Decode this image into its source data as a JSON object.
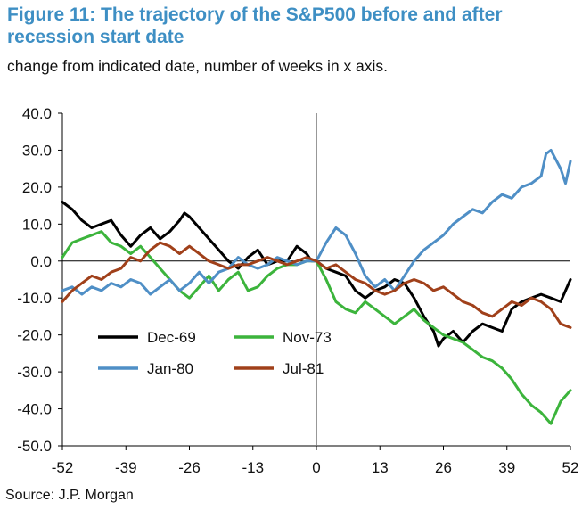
{
  "title": "Figure 11: The trajectory of the S&P500 before and after recession start date",
  "subtitle": "change from indicated date, number of weeks in x axis.",
  "source": "Source: J.P. Morgan",
  "colors": {
    "Dec-69": "#000000",
    "Nov-73": "#3cb43c",
    "Jan-80": "#4f8fc6",
    "Jul-81": "#a0401a"
  },
  "chart_data": {
    "type": "line",
    "title": "Figure 11: The trajectory of the S&P500 before and after recession start date",
    "xlabel": "",
    "ylabel": "",
    "xlim": [
      -52,
      52
    ],
    "ylim": [
      -50,
      40
    ],
    "x_ticks": [
      "-52",
      "-39",
      "-26",
      "-13",
      "0",
      "13",
      "26",
      "39",
      "52"
    ],
    "x_tick_values": [
      -52,
      -39,
      -26,
      -13,
      0,
      13,
      26,
      39,
      52
    ],
    "y_ticks": [
      "40.0",
      "30.0",
      "20.0",
      "10.0",
      "0.0",
      "-10.0",
      "-20.0",
      "-30.0",
      "-40.0",
      "-50.0"
    ],
    "y_tick_values": [
      40,
      30,
      20,
      10,
      0,
      -10,
      -20,
      -30,
      -40,
      -50
    ],
    "grid": false,
    "legend_position": "lower-left",
    "series": [
      {
        "name": "Dec-69",
        "points": [
          [
            -52,
            16
          ],
          [
            -50,
            14
          ],
          [
            -48,
            11
          ],
          [
            -46,
            9
          ],
          [
            -44,
            10
          ],
          [
            -42,
            11
          ],
          [
            -40,
            7
          ],
          [
            -38,
            4
          ],
          [
            -36,
            7
          ],
          [
            -34,
            9
          ],
          [
            -32,
            6
          ],
          [
            -30,
            8
          ],
          [
            -28,
            11
          ],
          [
            -27,
            13
          ],
          [
            -26,
            12
          ],
          [
            -24,
            9
          ],
          [
            -22,
            6
          ],
          [
            -20,
            3
          ],
          [
            -18,
            0
          ],
          [
            -16,
            -2
          ],
          [
            -14,
            1
          ],
          [
            -12,
            3
          ],
          [
            -10,
            -1
          ],
          [
            -8,
            0
          ],
          [
            -6,
            0
          ],
          [
            -4,
            4
          ],
          [
            -2,
            2
          ],
          [
            -1,
            0
          ],
          [
            0,
            0
          ],
          [
            2,
            -2
          ],
          [
            4,
            -3
          ],
          [
            6,
            -4
          ],
          [
            8,
            -8
          ],
          [
            10,
            -10
          ],
          [
            12,
            -8
          ],
          [
            14,
            -7
          ],
          [
            16,
            -5
          ],
          [
            18,
            -6
          ],
          [
            20,
            -10
          ],
          [
            22,
            -15
          ],
          [
            24,
            -19
          ],
          [
            25,
            -23
          ],
          [
            26,
            -21
          ],
          [
            28,
            -19
          ],
          [
            30,
            -22
          ],
          [
            32,
            -19
          ],
          [
            34,
            -17
          ],
          [
            36,
            -18
          ],
          [
            38,
            -19
          ],
          [
            40,
            -13
          ],
          [
            42,
            -11
          ],
          [
            44,
            -10
          ],
          [
            46,
            -9
          ],
          [
            48,
            -10
          ],
          [
            50,
            -11
          ],
          [
            52,
            -5
          ]
        ]
      },
      {
        "name": "Nov-73",
        "points": [
          [
            -52,
            1
          ],
          [
            -51,
            3
          ],
          [
            -50,
            5
          ],
          [
            -48,
            6
          ],
          [
            -46,
            7
          ],
          [
            -44,
            8
          ],
          [
            -42,
            5
          ],
          [
            -40,
            4
          ],
          [
            -38,
            2
          ],
          [
            -36,
            4
          ],
          [
            -34,
            1
          ],
          [
            -32,
            -2
          ],
          [
            -30,
            -5
          ],
          [
            -28,
            -8
          ],
          [
            -26,
            -10
          ],
          [
            -24,
            -7
          ],
          [
            -22,
            -4
          ],
          [
            -20,
            -8
          ],
          [
            -18,
            -5
          ],
          [
            -16,
            -3
          ],
          [
            -14,
            -8
          ],
          [
            -12,
            -7
          ],
          [
            -10,
            -4
          ],
          [
            -8,
            -2
          ],
          [
            -6,
            -1
          ],
          [
            -4,
            -1
          ],
          [
            -2,
            0
          ],
          [
            0,
            0
          ],
          [
            2,
            -5
          ],
          [
            4,
            -11
          ],
          [
            6,
            -13
          ],
          [
            8,
            -14
          ],
          [
            10,
            -11
          ],
          [
            12,
            -13
          ],
          [
            14,
            -15
          ],
          [
            16,
            -17
          ],
          [
            18,
            -15
          ],
          [
            20,
            -13
          ],
          [
            22,
            -16
          ],
          [
            24,
            -18
          ],
          [
            26,
            -20
          ],
          [
            28,
            -21
          ],
          [
            30,
            -22
          ],
          [
            32,
            -24
          ],
          [
            34,
            -26
          ],
          [
            36,
            -27
          ],
          [
            38,
            -29
          ],
          [
            40,
            -32
          ],
          [
            42,
            -36
          ],
          [
            44,
            -39
          ],
          [
            46,
            -41
          ],
          [
            48,
            -44
          ],
          [
            50,
            -38
          ],
          [
            52,
            -35
          ]
        ]
      },
      {
        "name": "Jan-80",
        "points": [
          [
            -52,
            -8
          ],
          [
            -50,
            -7
          ],
          [
            -48,
            -9
          ],
          [
            -46,
            -7
          ],
          [
            -44,
            -8
          ],
          [
            -42,
            -6
          ],
          [
            -40,
            -7
          ],
          [
            -38,
            -5
          ],
          [
            -36,
            -6
          ],
          [
            -34,
            -9
          ],
          [
            -32,
            -7
          ],
          [
            -30,
            -5
          ],
          [
            -28,
            -8
          ],
          [
            -26,
            -6
          ],
          [
            -24,
            -3
          ],
          [
            -22,
            -6
          ],
          [
            -20,
            -3
          ],
          [
            -18,
            -2
          ],
          [
            -16,
            1
          ],
          [
            -14,
            -1
          ],
          [
            -12,
            -2
          ],
          [
            -10,
            -1
          ],
          [
            -8,
            1
          ],
          [
            -6,
            0
          ],
          [
            -4,
            -1
          ],
          [
            -2,
            0
          ],
          [
            0,
            0
          ],
          [
            2,
            5
          ],
          [
            4,
            9
          ],
          [
            6,
            7
          ],
          [
            8,
            2
          ],
          [
            10,
            -4
          ],
          [
            12,
            -7
          ],
          [
            14,
            -5
          ],
          [
            16,
            -8
          ],
          [
            18,
            -4
          ],
          [
            20,
            0
          ],
          [
            22,
            3
          ],
          [
            24,
            5
          ],
          [
            26,
            7
          ],
          [
            28,
            10
          ],
          [
            30,
            12
          ],
          [
            32,
            14
          ],
          [
            34,
            13
          ],
          [
            36,
            16
          ],
          [
            38,
            18
          ],
          [
            40,
            17
          ],
          [
            42,
            20
          ],
          [
            44,
            21
          ],
          [
            46,
            23
          ],
          [
            47,
            29
          ],
          [
            48,
            30
          ],
          [
            50,
            25
          ],
          [
            51,
            21
          ],
          [
            52,
            27
          ]
        ]
      },
      {
        "name": "Jul-81",
        "points": [
          [
            -52,
            -11
          ],
          [
            -50,
            -8
          ],
          [
            -48,
            -6
          ],
          [
            -46,
            -4
          ],
          [
            -44,
            -5
          ],
          [
            -42,
            -3
          ],
          [
            -40,
            -2
          ],
          [
            -38,
            1
          ],
          [
            -36,
            0
          ],
          [
            -34,
            3
          ],
          [
            -32,
            5
          ],
          [
            -30,
            4
          ],
          [
            -28,
            2
          ],
          [
            -26,
            4
          ],
          [
            -24,
            2
          ],
          [
            -22,
            0
          ],
          [
            -20,
            -1
          ],
          [
            -18,
            -2
          ],
          [
            -16,
            -1
          ],
          [
            -14,
            -1
          ],
          [
            -12,
            0
          ],
          [
            -10,
            1
          ],
          [
            -8,
            0
          ],
          [
            -6,
            -1
          ],
          [
            -4,
            0
          ],
          [
            -2,
            1
          ],
          [
            0,
            0
          ],
          [
            2,
            -2
          ],
          [
            4,
            -1
          ],
          [
            6,
            -3
          ],
          [
            8,
            -5
          ],
          [
            10,
            -6
          ],
          [
            12,
            -8
          ],
          [
            14,
            -9
          ],
          [
            16,
            -8
          ],
          [
            18,
            -6
          ],
          [
            20,
            -5
          ],
          [
            22,
            -6
          ],
          [
            24,
            -8
          ],
          [
            26,
            -7
          ],
          [
            28,
            -9
          ],
          [
            30,
            -11
          ],
          [
            32,
            -12
          ],
          [
            34,
            -14
          ],
          [
            36,
            -15
          ],
          [
            38,
            -13
          ],
          [
            40,
            -11
          ],
          [
            42,
            -12
          ],
          [
            44,
            -10
          ],
          [
            46,
            -11
          ],
          [
            48,
            -13
          ],
          [
            50,
            -17
          ],
          [
            52,
            -18
          ]
        ]
      }
    ]
  }
}
